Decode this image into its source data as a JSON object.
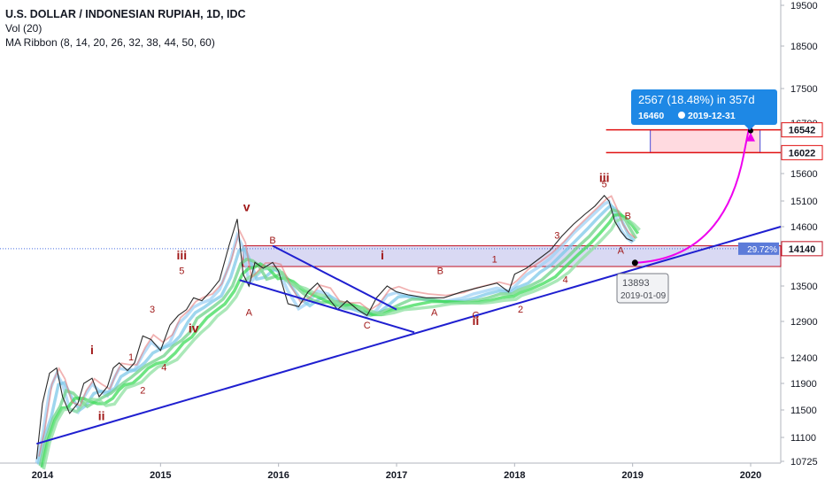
{
  "legend": {
    "title": "U.S. DOLLAR / INDONESIAN RUPIAH, 1D, IDC",
    "vol": "Vol (20)",
    "ribbon": "MA Ribbon (8, 14, 20, 26, 32, 38, 44, 50, 60)"
  },
  "colors": {
    "price_up": "#26a69a",
    "price_down": "#ef5350",
    "trend_line": "#1f1fd0",
    "wave_label": "#a01818",
    "projection": "#ee00ee",
    "box_blue": "#c9c9ee",
    "box_red": "#ffd3da",
    "h_line_red": "#e01010",
    "axis_text": "#131722"
  },
  "chart_data": {
    "type": "line",
    "x_ticks": [
      "2014",
      "2015",
      "2016",
      "2017",
      "2018",
      "2019",
      "2020"
    ],
    "y_ticks": [
      10725,
      11100,
      11500,
      11900,
      12400,
      12900,
      13500,
      14100,
      14600,
      15100,
      15600,
      16100,
      16700,
      17500,
      18500,
      19500
    ],
    "ylim": [
      10700,
      19500
    ],
    "price_series": {
      "x": [
        2013.95,
        2014.0,
        2014.06,
        2014.12,
        2014.17,
        2014.23,
        2014.3,
        2014.35,
        2014.42,
        2014.48,
        2014.55,
        2014.6,
        2014.65,
        2014.72,
        2014.78,
        2014.85,
        2014.92,
        2015.0,
        2015.08,
        2015.15,
        2015.22,
        2015.28,
        2015.35,
        2015.42,
        2015.5,
        2015.58,
        2015.65,
        2015.7,
        2015.75,
        2015.8,
        2015.87,
        2015.95,
        2016.0,
        2016.08,
        2016.17,
        2016.25,
        2016.33,
        2016.42,
        2016.5,
        2016.58,
        2016.67,
        2016.75,
        2016.83,
        2016.92,
        2017.0,
        2017.1,
        2017.25,
        2017.4,
        2017.55,
        2017.65,
        2017.75,
        2017.85,
        2017.95,
        2018.0,
        2018.1,
        2018.2,
        2018.3,
        2018.4,
        2018.5,
        2018.6,
        2018.68,
        2018.76,
        2018.8,
        2018.85,
        2018.9,
        2018.95,
        2019.0
      ],
      "y": [
        10760,
        11600,
        12100,
        12200,
        11700,
        11450,
        11600,
        11900,
        12000,
        11700,
        11850,
        12200,
        12300,
        12150,
        12300,
        12700,
        12650,
        12500,
        12850,
        13000,
        13100,
        13300,
        13250,
        13400,
        13600,
        14200,
        14750,
        13700,
        13500,
        13900,
        13800,
        13900,
        13750,
        13200,
        13150,
        13400,
        13550,
        13300,
        13100,
        13250,
        13100,
        13000,
        13300,
        13500,
        13400,
        13350,
        13300,
        13300,
        13400,
        13450,
        13500,
        13550,
        13400,
        13700,
        13800,
        13950,
        14100,
        14400,
        14650,
        14850,
        15000,
        15200,
        15100,
        14700,
        14500,
        14350,
        14300
      ]
    },
    "wave_labels": [
      {
        "text": "i",
        "x": 2014.42,
        "y": 12450,
        "style": "major"
      },
      {
        "text": "ii",
        "x": 2014.5,
        "y": 11350,
        "style": "major"
      },
      {
        "text": "iii",
        "x": 2015.18,
        "y": 13950,
        "style": "major"
      },
      {
        "text": "iv",
        "x": 2015.28,
        "y": 12750,
        "style": "major"
      },
      {
        "text": "v",
        "x": 2015.73,
        "y": 14900,
        "style": "major"
      },
      {
        "text": "i",
        "x": 2016.88,
        "y": 13950,
        "style": "major"
      },
      {
        "text": "ii",
        "x": 2017.67,
        "y": 12850,
        "style": "major"
      },
      {
        "text": "iii",
        "x": 2018.76,
        "y": 15450,
        "style": "major"
      },
      {
        "text": "1",
        "x": 2014.75,
        "y": 12350,
        "style": "minor"
      },
      {
        "text": "2",
        "x": 2014.85,
        "y": 11750,
        "style": "minor"
      },
      {
        "text": "3",
        "x": 2014.93,
        "y": 13050,
        "style": "minor"
      },
      {
        "text": "4",
        "x": 2015.03,
        "y": 12150,
        "style": "minor"
      },
      {
        "text": "5",
        "x": 2015.18,
        "y": 13700,
        "style": "minor"
      },
      {
        "text": "A",
        "x": 2015.75,
        "y": 13000,
        "style": "minor"
      },
      {
        "text": "B",
        "x": 2015.95,
        "y": 14250,
        "style": "minor"
      },
      {
        "text": "C",
        "x": 2016.75,
        "y": 12800,
        "style": "minor"
      },
      {
        "text": "A",
        "x": 2017.32,
        "y": 13000,
        "style": "minor"
      },
      {
        "text": "B",
        "x": 2017.37,
        "y": 13700,
        "style": "minor"
      },
      {
        "text": "C",
        "x": 2017.67,
        "y": 12950,
        "style": "minor"
      },
      {
        "text": "1",
        "x": 2017.83,
        "y": 13900,
        "style": "minor"
      },
      {
        "text": "2",
        "x": 2018.05,
        "y": 13050,
        "style": "minor"
      },
      {
        "text": "3",
        "x": 2018.36,
        "y": 14350,
        "style": "minor"
      },
      {
        "text": "4",
        "x": 2018.43,
        "y": 13550,
        "style": "minor"
      },
      {
        "text": "5",
        "x": 2018.76,
        "y": 15350,
        "style": "minor"
      },
      {
        "text": "B",
        "x": 2018.96,
        "y": 14750,
        "style": "minor"
      },
      {
        "text": "A",
        "x": 2018.9,
        "y": 14050,
        "style": "minor"
      }
    ],
    "trend_lines": [
      {
        "x1": 2013.95,
        "y1": 11000,
        "x2": 2020.28,
        "y2": 14600
      },
      {
        "x1": 2015.67,
        "y1": 13600,
        "x2": 2017.15,
        "y2": 12750
      },
      {
        "x1": 2015.95,
        "y1": 14200,
        "x2": 2017.0,
        "y2": 13100
      }
    ],
    "zones": [
      {
        "type": "blue_band",
        "x1": 2015.7,
        "x2": 2020.28,
        "y1": 13830,
        "y2": 14200
      },
      {
        "type": "red_box",
        "x1": 2019.15,
        "x2": 2020.08,
        "y1": 16022,
        "y2": 16542
      }
    ],
    "h_lines": [
      {
        "y": 16542,
        "x1": 2019.0,
        "x2": 2020.28
      },
      {
        "y": 16022,
        "x1": 2019.0,
        "x2": 2020.28
      }
    ],
    "projection_curve": {
      "x1": 2019.02,
      "y1": 13893,
      "x2": 2020.0,
      "y2": 16460
    },
    "annotations": [
      {
        "title": "2567 (18.48%) in 357d",
        "sub1": "16460",
        "sub2": "2019-12-31"
      },
      {
        "title": "13893",
        "sub1": "2019-01-09"
      }
    ],
    "price_labels": [
      {
        "value": "16542",
        "y": 16542
      },
      {
        "value": "16022",
        "y": 16022
      },
      {
        "value": "14140",
        "y": 14140
      }
    ],
    "band_percent": "29.72%"
  }
}
